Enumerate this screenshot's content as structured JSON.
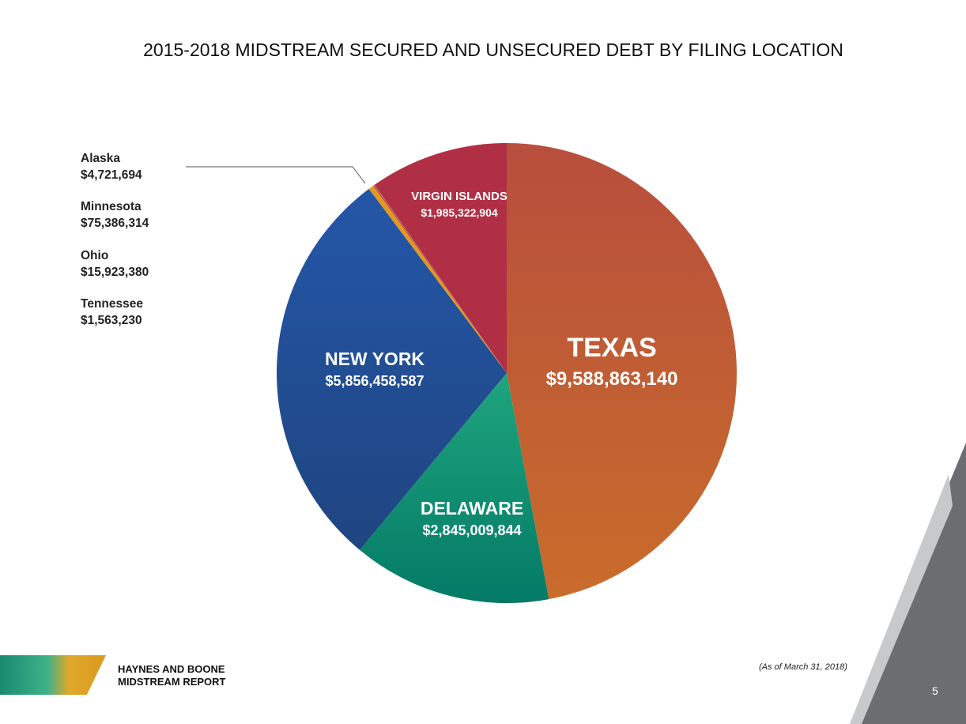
{
  "chart_data": {
    "type": "pie",
    "title": "2015-2018 MIDSTREAM SECURED AND UNSECURED DEBT BY FILING LOCATION",
    "slices": [
      {
        "name": "TEXAS",
        "value": 9588863140,
        "label": "$9,588,863,140",
        "colors": [
          "#b84e3d",
          "#c96c2b"
        ]
      },
      {
        "name": "DELAWARE",
        "value": 2845009844,
        "label": "$2,845,009,844",
        "colors": [
          "#1fa57e",
          "#037a66"
        ]
      },
      {
        "name": "NEW YORK",
        "value": 5856458587,
        "label": "$5,856,458,587",
        "colors": [
          "#2456a8",
          "#1f4580"
        ]
      },
      {
        "name": "Minnesota",
        "value": 75386314,
        "label": "$75,386,314",
        "colors": [
          "#e09a22",
          "#e09a22"
        ]
      },
      {
        "name": "Ohio",
        "value": 15923380,
        "label": "$15,923,380",
        "colors": [
          "#c23b2f",
          "#c23b2f"
        ]
      },
      {
        "name": "Tennessee",
        "value": 1563230,
        "label": "$1,563,230",
        "colors": [
          "#7a3b8c",
          "#7a3b8c"
        ]
      },
      {
        "name": "Alaska",
        "value": 4721694,
        "label": "$4,721,694",
        "colors": [
          "#999999",
          "#999999"
        ]
      },
      {
        "name": "VIRGIN ISLANDS",
        "value": 1985322904,
        "label": "$1,985,322,904",
        "colors": [
          "#b02f45",
          "#b02f45"
        ]
      }
    ],
    "small_legend": [
      {
        "name": "Alaska",
        "label": "$4,721,694"
      },
      {
        "name": "Minnesota",
        "label": "$75,386,314"
      },
      {
        "name": "Ohio",
        "label": "$15,923,380"
      },
      {
        "name": "Tennessee",
        "label": "$1,563,230"
      }
    ]
  },
  "footer": {
    "brand1": "HAYNES AND BOONE",
    "brand2": "MIDSTREAM REPORT",
    "as_of": "(As of March 31, 2018)",
    "page": "5"
  }
}
